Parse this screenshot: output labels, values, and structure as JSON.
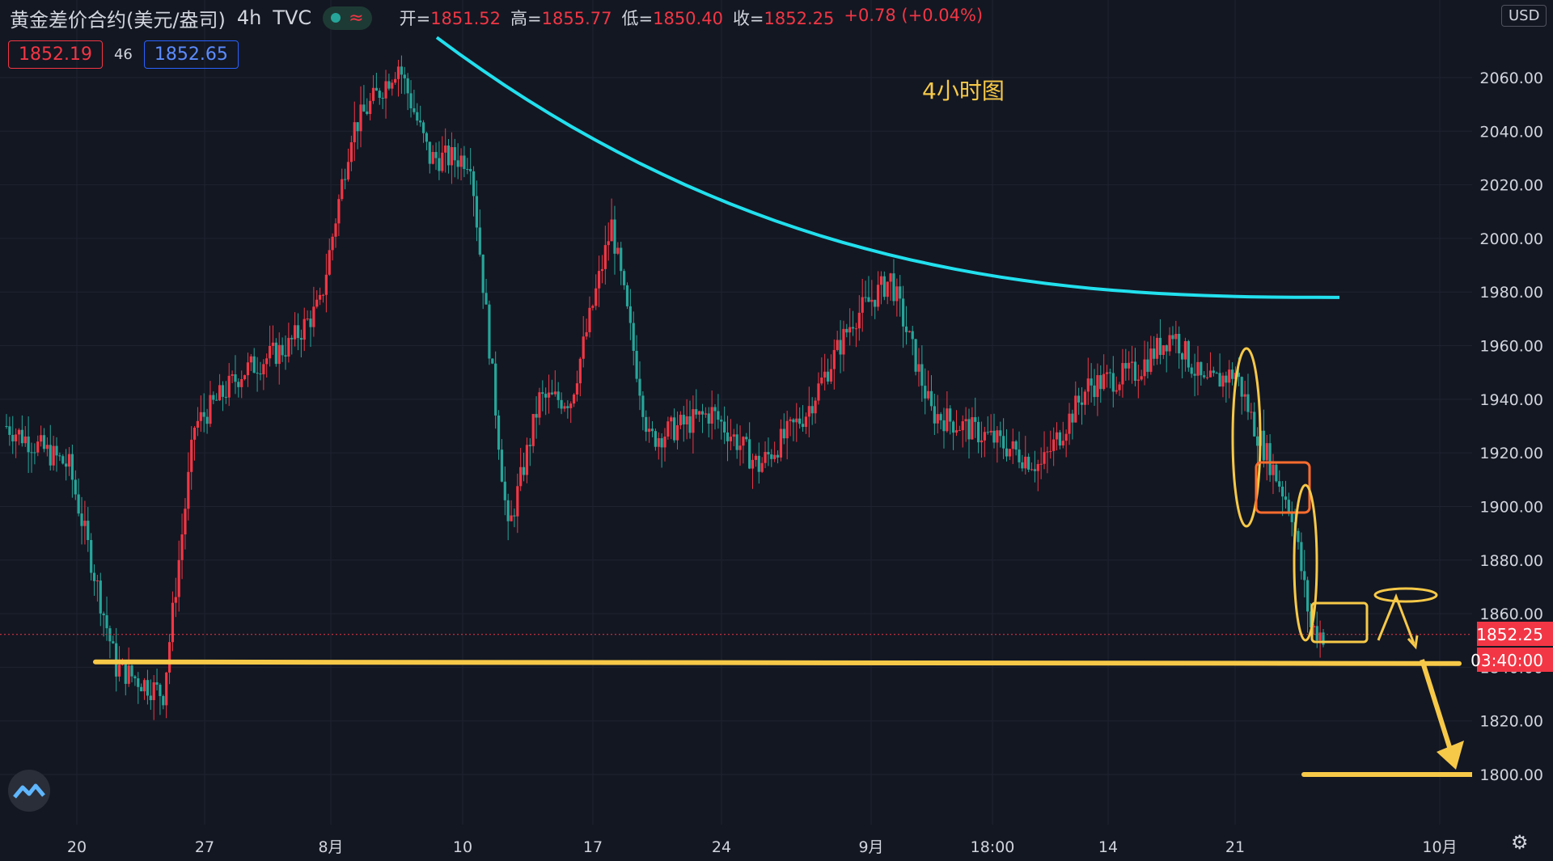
{
  "header": {
    "symbol": "黄金差价合约(美元/盎司)",
    "interval": "4h",
    "source": "TVC",
    "live_wave": "≈",
    "open_label": "开=",
    "open": "1851.52",
    "high_label": "高=",
    "high": "1855.77",
    "low_label": "低=",
    "low": "1850.40",
    "close_label": "收=",
    "close": "1852.25",
    "change": "+0.78 (+0.04%)"
  },
  "quote": {
    "bid": "1852.19",
    "spread": "46",
    "ask": "1852.65"
  },
  "currency": "USD",
  "annotation_title": "4小时图",
  "price_tag": "1852.25",
  "countdown": "03:40:00",
  "colors": {
    "up": "#f23645",
    "down": "#26a69a",
    "background": "#131722",
    "trendline": "#22e0ee",
    "marker_yellow": "#f7c948",
    "marker_orange": "#ff6d2e"
  },
  "icons": {
    "logo": "wave-logo-icon",
    "settings": "gear-icon"
  },
  "chart_data": {
    "type": "candlestick",
    "y_axis": {
      "ticks": [
        "2060.00",
        "2040.00",
        "2020.00",
        "2000.00",
        "1980.00",
        "1960.00",
        "1940.00",
        "1920.00",
        "1900.00",
        "1880.00",
        "1860.00",
        "1840.00",
        "1820.00",
        "1800.00"
      ],
      "range": [
        1790,
        2080
      ]
    },
    "x_axis": {
      "ticks": [
        "20",
        "27",
        "8月",
        "10",
        "17",
        "24",
        "9月",
        "18:00",
        "14",
        "21",
        "10月"
      ]
    },
    "overlays": {
      "descending_resistance_curve": [
        2075,
        1978
      ],
      "support_line": 1842,
      "target_line": 1800
    },
    "anchors": [
      {
        "bar": 0,
        "p": 1930
      },
      {
        "bar": 20,
        "p": 1915
      },
      {
        "bar": 35,
        "p": 1840
      },
      {
        "bar": 50,
        "p": 1830
      },
      {
        "bar": 60,
        "p": 1930
      },
      {
        "bar": 75,
        "p": 1950
      },
      {
        "bar": 90,
        "p": 1960
      },
      {
        "bar": 100,
        "p": 1975
      },
      {
        "bar": 110,
        "p": 2040
      },
      {
        "bar": 125,
        "p": 2065
      },
      {
        "bar": 135,
        "p": 2030
      },
      {
        "bar": 148,
        "p": 2030
      },
      {
        "bar": 160,
        "p": 1890
      },
      {
        "bar": 170,
        "p": 1940
      },
      {
        "bar": 180,
        "p": 1940
      },
      {
        "bar": 193,
        "p": 2005
      },
      {
        "bar": 205,
        "p": 1925
      },
      {
        "bar": 225,
        "p": 1935
      },
      {
        "bar": 240,
        "p": 1915
      },
      {
        "bar": 255,
        "p": 1935
      },
      {
        "bar": 270,
        "p": 1970
      },
      {
        "bar": 282,
        "p": 1985
      },
      {
        "bar": 295,
        "p": 1935
      },
      {
        "bar": 315,
        "p": 1925
      },
      {
        "bar": 330,
        "p": 1915
      },
      {
        "bar": 345,
        "p": 1945
      },
      {
        "bar": 360,
        "p": 1950
      },
      {
        "bar": 372,
        "p": 1965
      },
      {
        "bar": 382,
        "p": 1945
      },
      {
        "bar": 392,
        "p": 1950
      },
      {
        "bar": 398,
        "p": 1930
      },
      {
        "bar": 410,
        "p": 1898
      },
      {
        "bar": 416,
        "p": 1855
      },
      {
        "bar": 420,
        "p": 1852
      }
    ]
  }
}
